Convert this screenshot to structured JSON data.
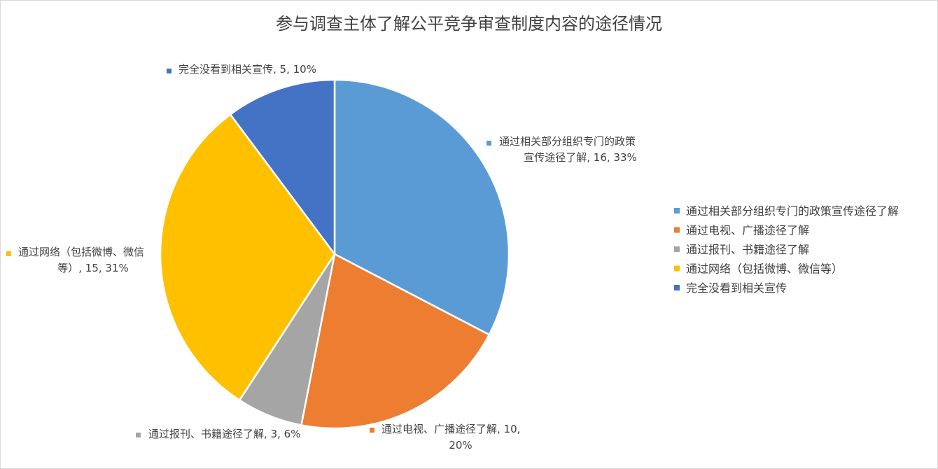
{
  "chart_data": {
    "type": "pie",
    "title": "参与调查主体了解公平竞争审查制度内容的途径情况",
    "slices": [
      {
        "name": "通过相关部分组织专门的政策宣传途径了解",
        "value": 16,
        "percent": "33%",
        "color": "#5B9BD5",
        "label_lines": [
          "通过相关部分组织专门的政策",
          "宣传途径了解, 16, 33%"
        ]
      },
      {
        "name": "通过电视、广播途径了解",
        "value": 10,
        "percent": "20%",
        "color": "#ED7D31",
        "label_lines": [
          "通过电视、广播途径了解, 10,",
          "20%"
        ]
      },
      {
        "name": "通过报刊、书籍途径了解",
        "value": 3,
        "percent": "6%",
        "color": "#A5A5A5",
        "label_lines": [
          "通过报刊、书籍途径了解, 3, 6%"
        ]
      },
      {
        "name": "通过网络（包括微博、微信等）",
        "value": 15,
        "percent": "31%",
        "color": "#FFC000",
        "label_lines": [
          "通过网络（包括微博、微信",
          "等）, 15, 31%"
        ]
      },
      {
        "name": "完全没看到相关宣传",
        "value": 5,
        "percent": "10%",
        "color": "#4472C4",
        "label_lines": [
          "完全没看到相关宣传, 5, 10%"
        ]
      }
    ],
    "legend_position": "right"
  }
}
